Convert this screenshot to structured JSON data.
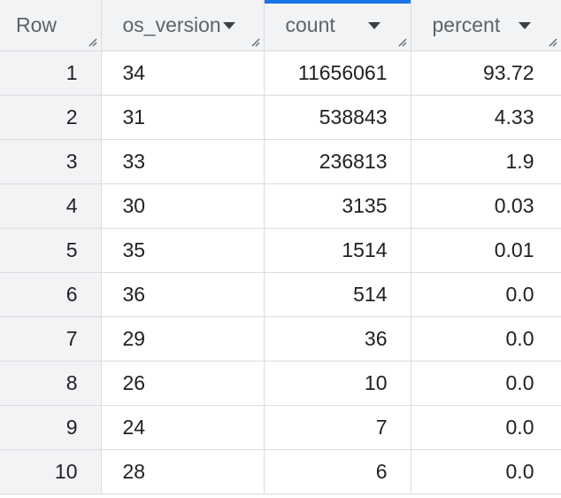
{
  "table": {
    "columns": [
      {
        "key": "row",
        "label": "Row",
        "sortable": false
      },
      {
        "key": "os_version",
        "label": "os_version",
        "sortable": true
      },
      {
        "key": "count",
        "label": "count",
        "sortable": true,
        "selected": true
      },
      {
        "key": "percent",
        "label": "percent",
        "sortable": true
      }
    ],
    "rows": [
      {
        "row": "1",
        "os_version": "34",
        "count": "11656061",
        "percent": "93.72"
      },
      {
        "row": "2",
        "os_version": "31",
        "count": "538843",
        "percent": "4.33"
      },
      {
        "row": "3",
        "os_version": "33",
        "count": "236813",
        "percent": "1.9"
      },
      {
        "row": "4",
        "os_version": "30",
        "count": "3135",
        "percent": "0.03"
      },
      {
        "row": "5",
        "os_version": "35",
        "count": "1514",
        "percent": "0.01"
      },
      {
        "row": "6",
        "os_version": "36",
        "count": "514",
        "percent": "0.0"
      },
      {
        "row": "7",
        "os_version": "29",
        "count": "36",
        "percent": "0.0"
      },
      {
        "row": "8",
        "os_version": "26",
        "count": "10",
        "percent": "0.0"
      },
      {
        "row": "9",
        "os_version": "24",
        "count": "7",
        "percent": "0.0"
      },
      {
        "row": "10",
        "os_version": "28",
        "count": "6",
        "percent": "0.0"
      }
    ]
  },
  "icons": {
    "sort": "caret-down-icon",
    "resize": "column-resize-icon"
  },
  "colors": {
    "header_bg": "#f1f3f4",
    "border": "#dadce0",
    "accent": "#1a73e8",
    "text": "#202124",
    "header_text": "#5f6368"
  }
}
